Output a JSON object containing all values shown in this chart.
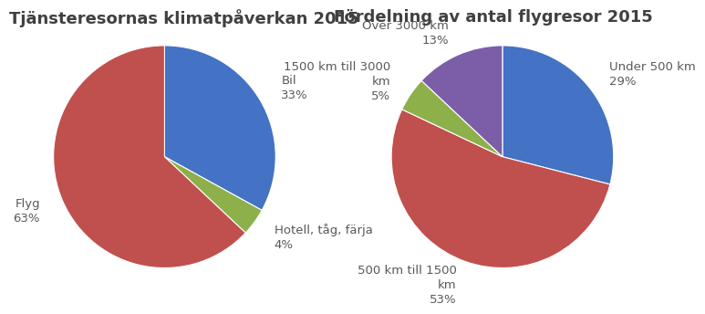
{
  "chart1": {
    "title": "Tjänsteresornas klimatpåverkan 2015",
    "labels": [
      "Bil",
      "Hotell, tåg, färja",
      "Flyg"
    ],
    "values": [
      33,
      4,
      63
    ],
    "colors": [
      "#4472C4",
      "#8DB04B",
      "#C0504D"
    ],
    "startangle": 90,
    "counterclock": false
  },
  "chart2": {
    "title": "Fördelning av antal flygresor 2015",
    "labels": [
      "Under 500 km",
      "500 km till 1500\nkm",
      "1500 km till 3000\nkm",
      "Över 3000 km"
    ],
    "values": [
      29,
      53,
      5,
      13
    ],
    "colors": [
      "#4472C4",
      "#C0504D",
      "#8DB04B",
      "#7B5EA7"
    ],
    "startangle": 90,
    "counterclock": false
  },
  "title_fontsize": 13,
  "label_fontsize": 9.5,
  "title_color": "#404040",
  "label_color": "#595959",
  "background_color": "#ffffff"
}
